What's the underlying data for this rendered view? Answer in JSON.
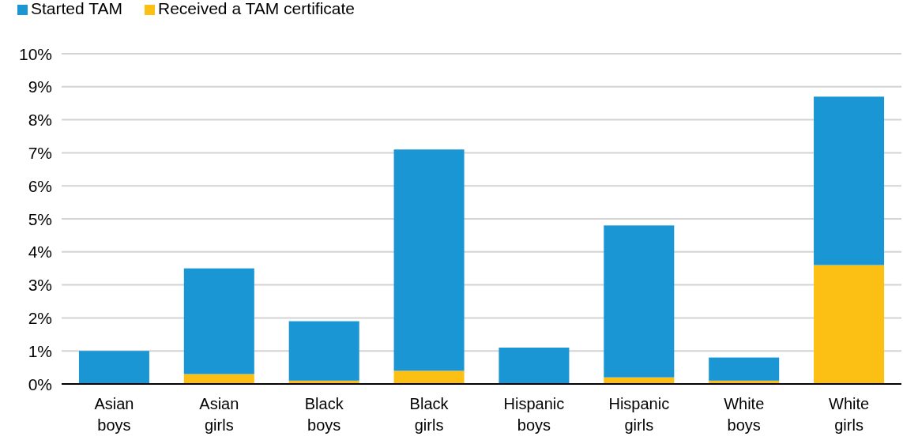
{
  "chart_data": {
    "type": "bar",
    "stacked": true,
    "categories": [
      "Asian boys",
      "Asian girls",
      "Black boys",
      "Black girls",
      "Hispanic boys",
      "Hispanic girls",
      "White boys",
      "White girls"
    ],
    "series": [
      {
        "name": "Received a TAM certificate",
        "color": "#fcbf14",
        "values": [
          0,
          0.3,
          0.1,
          0.4,
          0,
          0.2,
          0.1,
          3.6
        ]
      },
      {
        "name": "Started TAM",
        "color": "#1a96d4",
        "values": [
          1.0,
          3.2,
          1.8,
          6.7,
          1.1,
          4.6,
          0.7,
          5.1
        ]
      }
    ],
    "ylim": [
      0,
      10
    ],
    "yticks": [
      {
        "value": 0,
        "label": "0%"
      },
      {
        "value": 1,
        "label": "1%"
      },
      {
        "value": 2,
        "label": "2%"
      },
      {
        "value": 3,
        "label": "3%"
      },
      {
        "value": 4,
        "label": "4%"
      },
      {
        "value": 5,
        "label": "5%"
      },
      {
        "value": 6,
        "label": "6%"
      },
      {
        "value": 7,
        "label": "7%"
      },
      {
        "value": 8,
        "label": "8%"
      },
      {
        "value": 9,
        "label": "9%"
      },
      {
        "value": 10,
        "label": "10%"
      }
    ],
    "grid": "y",
    "legend": "top left"
  }
}
